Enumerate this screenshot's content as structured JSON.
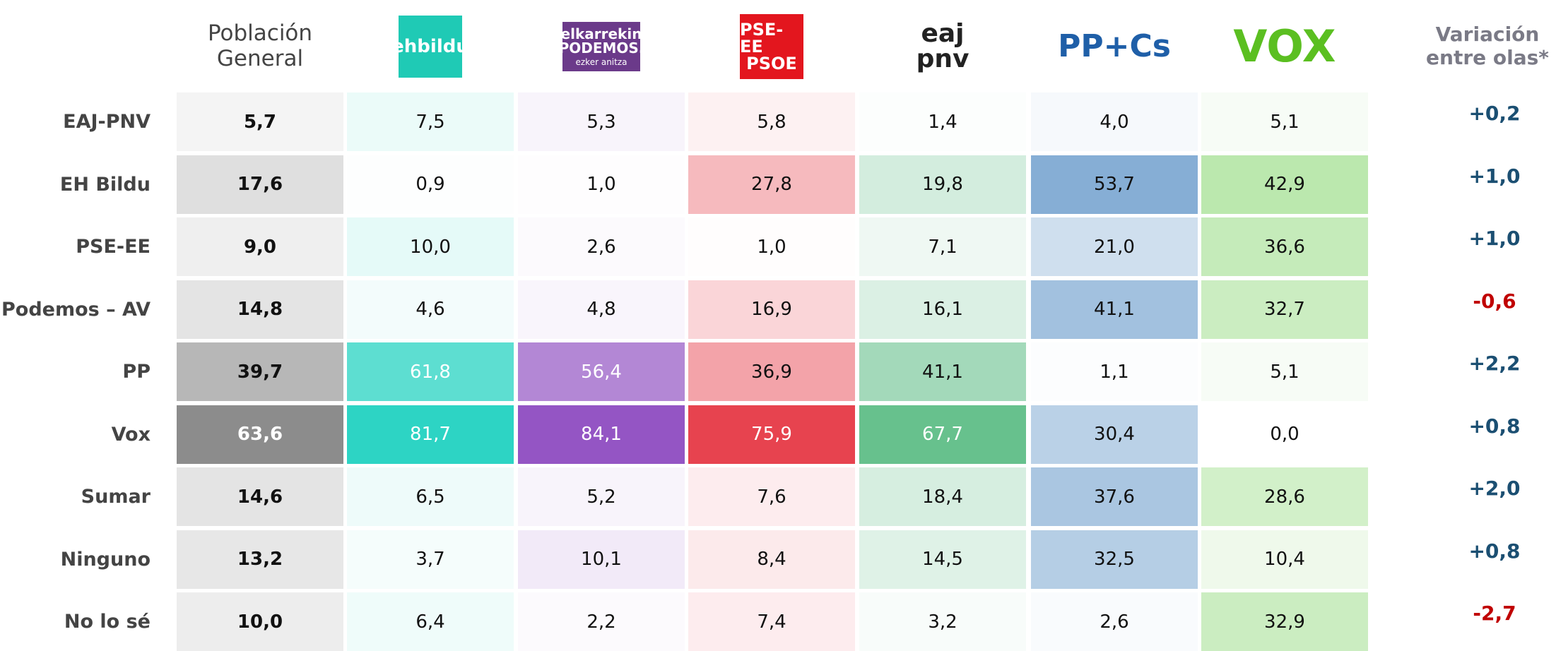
{
  "table": {
    "first_header": "Población General",
    "variation_header": "Variación entre olas*",
    "positive_color": "#1b4f72",
    "negative_color": "#c00000",
    "columns": [
      {
        "logo": [
          "ehbildu"
        ],
        "color": "#2dd4c4"
      },
      {
        "logo": [
          "elkarrekin",
          "PODEMOS.",
          "ezker anitza"
        ],
        "color": "#9455c4"
      },
      {
        "logo": [
          "PSE-EE",
          "PSOE"
        ],
        "color": "#e63946"
      },
      {
        "logo": [
          "eaj",
          "pnv"
        ],
        "color": "#4cb678"
      },
      {
        "logo": [
          "PP+Cs"
        ],
        "color": "#4a86c0"
      },
      {
        "logo": [
          "VOX"
        ],
        "color": "#80d468"
      }
    ],
    "first_color": "#6e6e6e",
    "rows": [
      {
        "label": "EAJ-PNV",
        "general": "5,7",
        "values": [
          "7,5",
          "5,3",
          "5,8",
          "1,4",
          "4,0",
          "5,1"
        ],
        "variation": "+0,2"
      },
      {
        "label": "EH Bildu",
        "general": "17,6",
        "values": [
          "0,9",
          "1,0",
          "27,8",
          "19,8",
          "53,7",
          "42,9"
        ],
        "variation": "+1,0"
      },
      {
        "label": "PSE-EE",
        "general": "9,0",
        "values": [
          "10,0",
          "2,6",
          "1,0",
          "7,1",
          "21,0",
          "36,6"
        ],
        "variation": "+1,0"
      },
      {
        "label": "Podemos – AV",
        "general": "14,8",
        "values": [
          "4,6",
          "4,8",
          "16,9",
          "16,1",
          "41,1",
          "32,7"
        ],
        "variation": "-0,6"
      },
      {
        "label": "PP",
        "general": "39,7",
        "values": [
          "61,8",
          "56,4",
          "36,9",
          "41,1",
          "1,1",
          "5,1"
        ],
        "variation": "+2,2"
      },
      {
        "label": "Vox",
        "general": "63,6",
        "values": [
          "81,7",
          "84,1",
          "75,9",
          "67,7",
          "30,4",
          "0,0"
        ],
        "variation": "+0,8"
      },
      {
        "label": "Sumar",
        "general": "14,6",
        "values": [
          "6,5",
          "5,2",
          "7,6",
          "18,4",
          "37,6",
          "28,6"
        ],
        "variation": "+2,0"
      },
      {
        "label": "Ninguno",
        "general": "13,2",
        "values": [
          "3,7",
          "10,1",
          "8,4",
          "14,5",
          "32,5",
          "10,4"
        ],
        "variation": "+0,8"
      },
      {
        "label": "No lo sé",
        "general": "10,0",
        "values": [
          "6,4",
          "2,2",
          "7,4",
          "3,2",
          "2,6",
          "32,9"
        ],
        "variation": "-2,7"
      }
    ]
  }
}
